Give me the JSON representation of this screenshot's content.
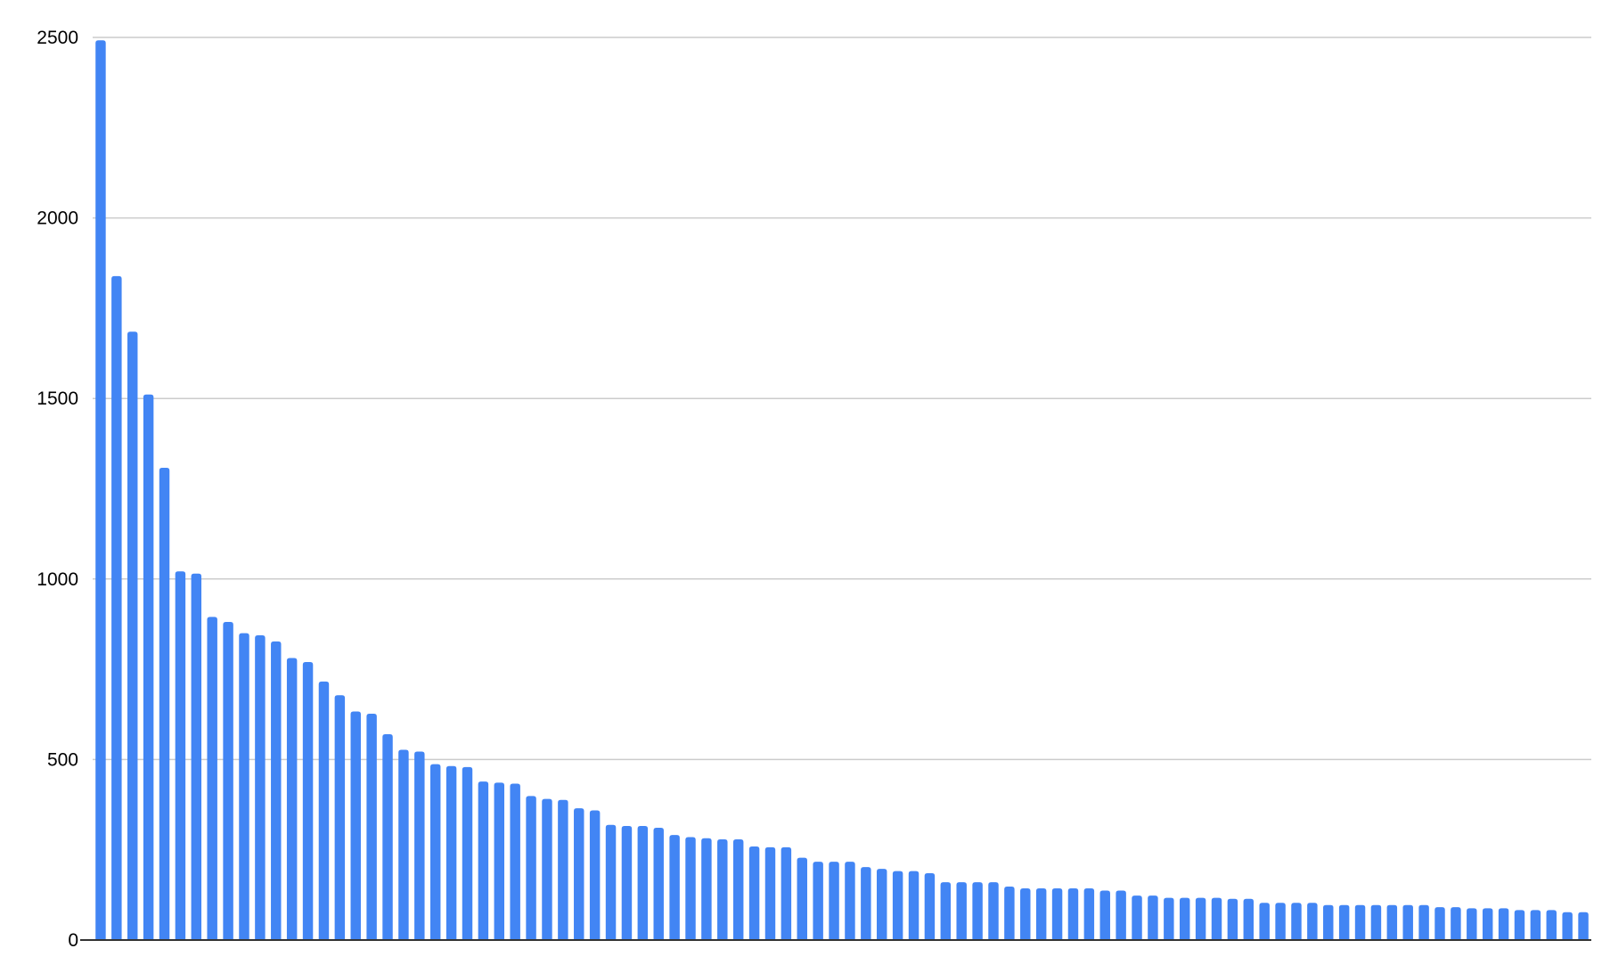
{
  "chart_data": {
    "type": "bar",
    "title": "",
    "xlabel": "",
    "ylabel": "",
    "ylim": [
      0,
      2500
    ],
    "yticks": [
      "0",
      "500",
      "1000",
      "1500",
      "2000",
      "2500"
    ],
    "grid": true,
    "legend": "none",
    "colors": {
      "bar": "#4285f4",
      "grid": "#cccccc",
      "axis": "#333333"
    },
    "values": [
      2492,
      1839,
      1685,
      1511,
      1308,
      1021,
      1015,
      895,
      881,
      850,
      844,
      827,
      781,
      770,
      716,
      678,
      633,
      627,
      570,
      527,
      522,
      487,
      482,
      479,
      439,
      436,
      433,
      399,
      391,
      388,
      365,
      359,
      319,
      316,
      316,
      311,
      291,
      285,
      282,
      279,
      279,
      259,
      257,
      257,
      228,
      217,
      217,
      217,
      202,
      197,
      191,
      191,
      185,
      160,
      160,
      160,
      160,
      148,
      143,
      143,
      143,
      143,
      143,
      137,
      137,
      123,
      123,
      117,
      117,
      117,
      117,
      114,
      114,
      103,
      103,
      103,
      103,
      97,
      97,
      97,
      97,
      97,
      97,
      97,
      91,
      91,
      88,
      88,
      88,
      83,
      83,
      83,
      77,
      77
    ]
  }
}
